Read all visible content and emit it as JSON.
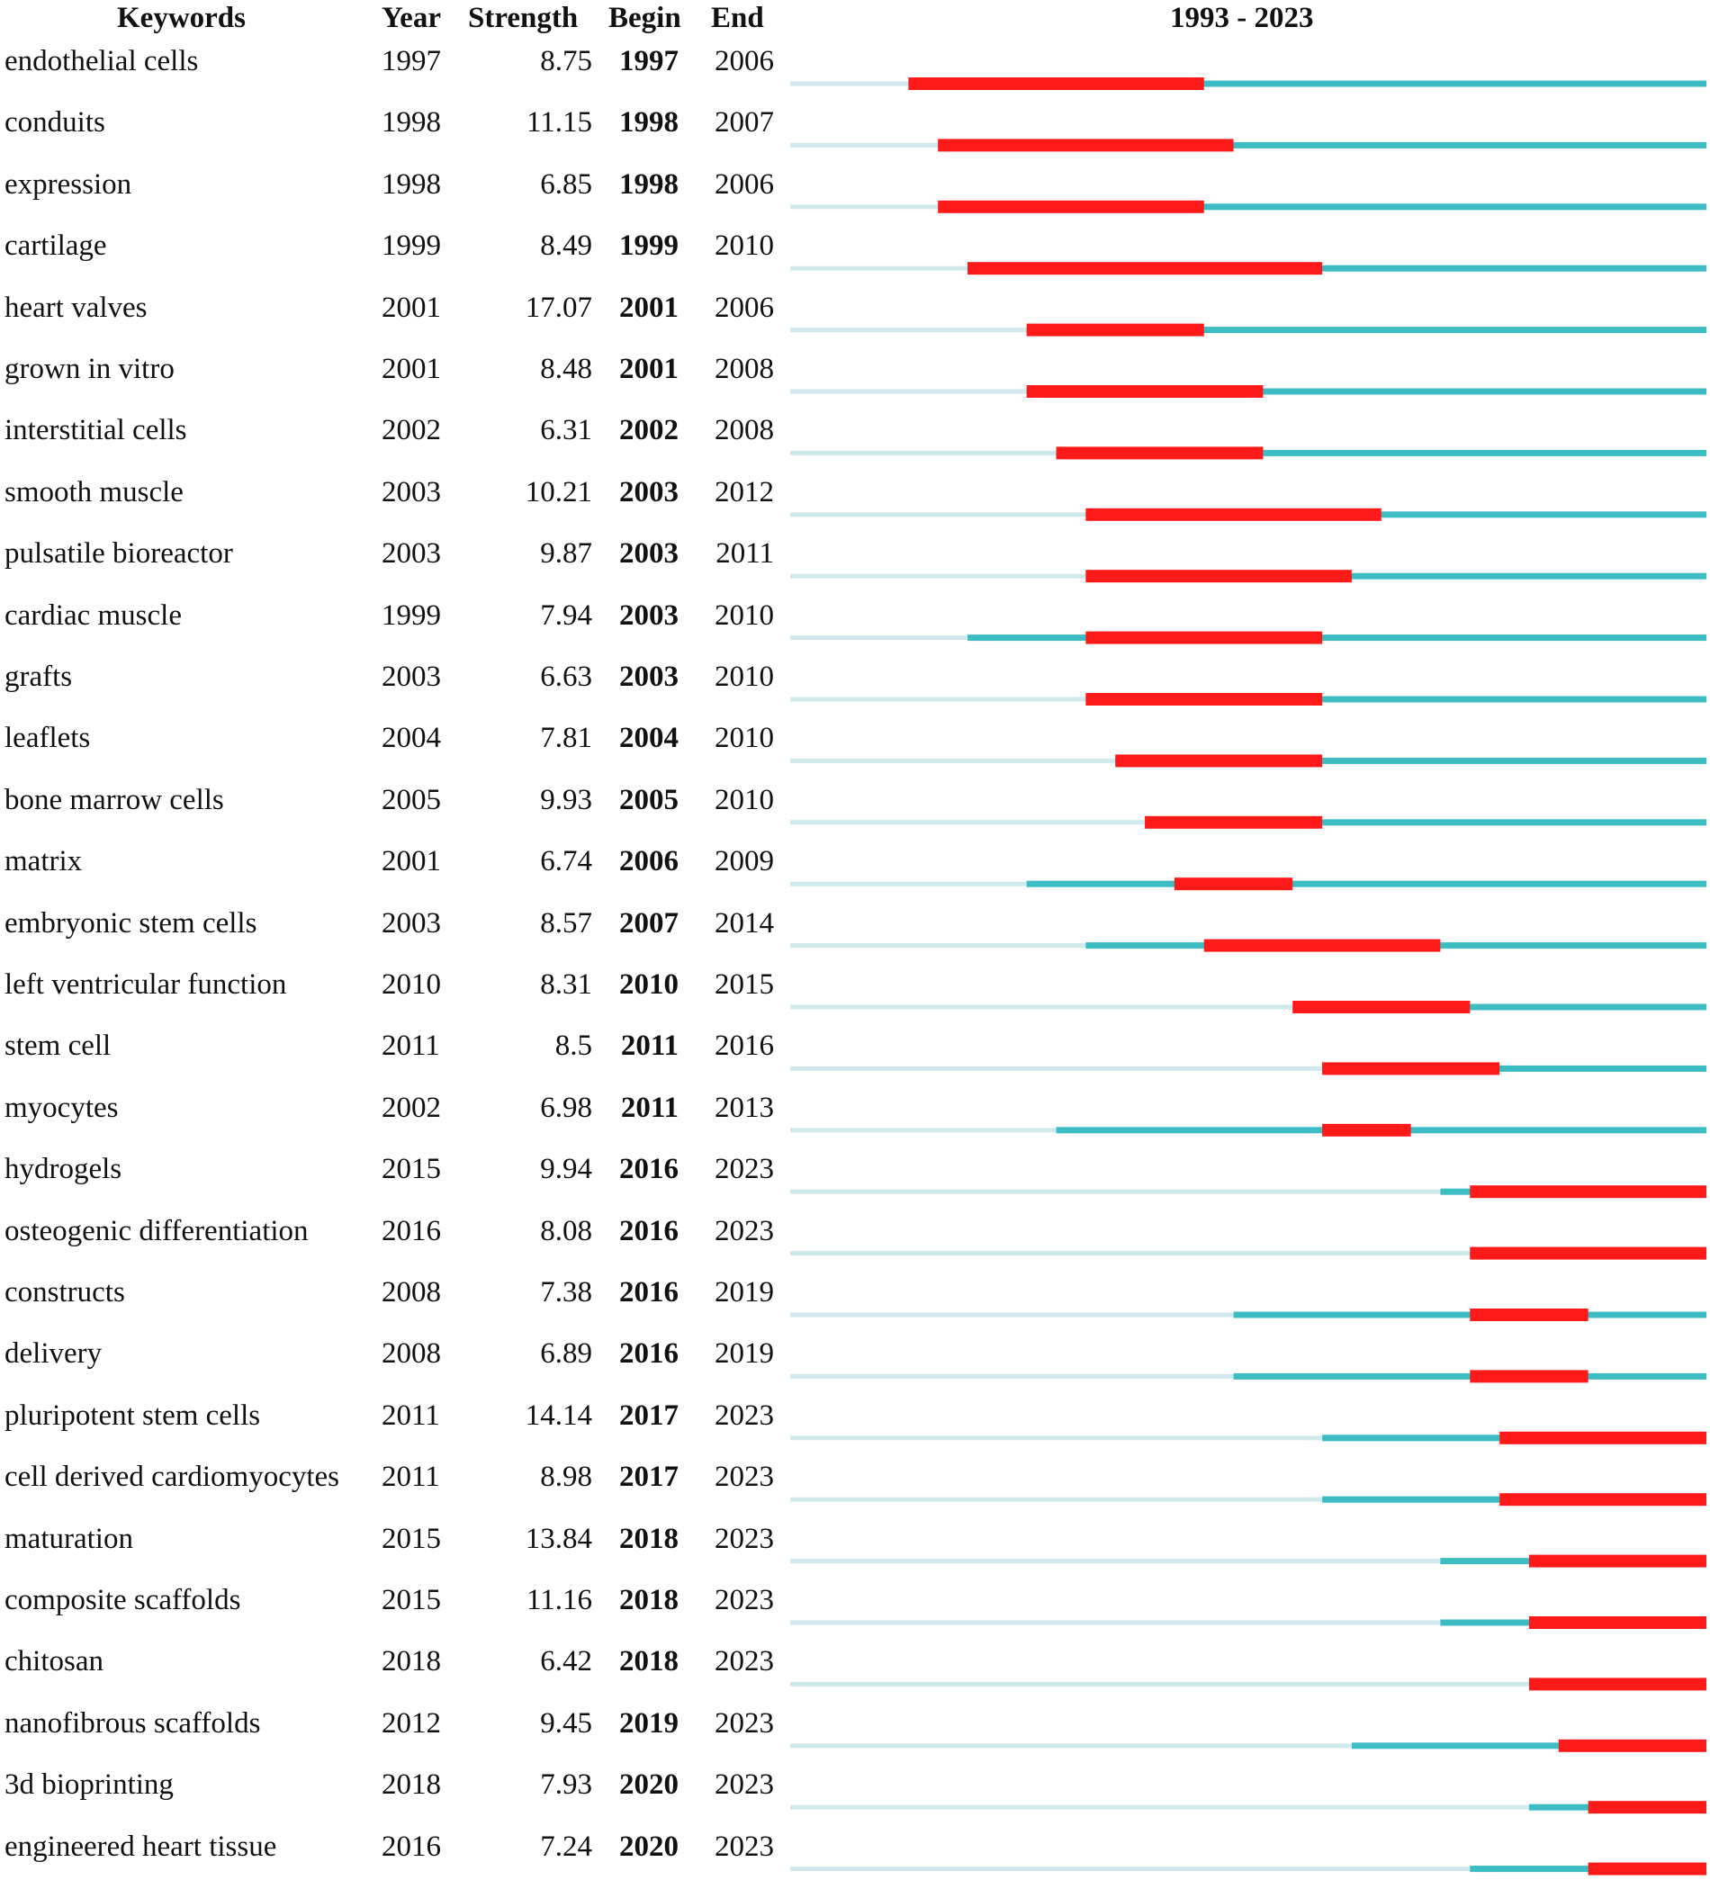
{
  "chart_data": {
    "type": "citation-burst",
    "headers": {
      "keywords": "Keywords",
      "year": "Year",
      "strength": "Strength",
      "begin": "Begin",
      "end": "End",
      "range": "1993 - 2023"
    },
    "range_start": 1993,
    "range_end": 2023,
    "colors": {
      "outside": "#cfe9ec",
      "active": "#3cbcc3",
      "burst": "#ff1a1a"
    },
    "rows": [
      {
        "keyword": "endothelial cells",
        "year": "1997",
        "strength": "8.75",
        "begin": "1997",
        "end": "2006"
      },
      {
        "keyword": "conduits",
        "year": "1998",
        "strength": "11.15",
        "begin": "1998",
        "end": "2007"
      },
      {
        "keyword": "expression",
        "year": "1998",
        "strength": "6.85",
        "begin": "1998",
        "end": "2006"
      },
      {
        "keyword": "cartilage",
        "year": "1999",
        "strength": "8.49",
        "begin": "1999",
        "end": "2010"
      },
      {
        "keyword": "heart valves",
        "year": "2001",
        "strength": "17.07",
        "begin": "2001",
        "end": "2006"
      },
      {
        "keyword": "grown in vitro",
        "year": "2001",
        "strength": "8.48",
        "begin": "2001",
        "end": "2008"
      },
      {
        "keyword": "interstitial cells",
        "year": "2002",
        "strength": "6.31",
        "begin": "2002",
        "end": "2008"
      },
      {
        "keyword": "smooth muscle",
        "year": "2003",
        "strength": "10.21",
        "begin": "2003",
        "end": "2012"
      },
      {
        "keyword": "pulsatile bioreactor",
        "year": "2003",
        "strength": "9.87",
        "begin": "2003",
        "end": "2011"
      },
      {
        "keyword": "cardiac muscle",
        "year": "1999",
        "strength": "7.94",
        "begin": "2003",
        "end": "2010"
      },
      {
        "keyword": "grafts",
        "year": "2003",
        "strength": "6.63",
        "begin": "2003",
        "end": "2010"
      },
      {
        "keyword": "leaflets",
        "year": "2004",
        "strength": "7.81",
        "begin": "2004",
        "end": "2010"
      },
      {
        "keyword": "bone marrow cells",
        "year": "2005",
        "strength": "9.93",
        "begin": "2005",
        "end": "2010"
      },
      {
        "keyword": "matrix",
        "year": "2001",
        "strength": "6.74",
        "begin": "2006",
        "end": "2009"
      },
      {
        "keyword": "embryonic stem cells",
        "year": "2003",
        "strength": "8.57",
        "begin": "2007",
        "end": "2014"
      },
      {
        "keyword": "left ventricular function",
        "year": "2010",
        "strength": "8.31",
        "begin": "2010",
        "end": "2015"
      },
      {
        "keyword": "stem cell",
        "year": "2011",
        "strength": "8.5",
        "begin": "2011",
        "end": "2016"
      },
      {
        "keyword": "myocytes",
        "year": "2002",
        "strength": "6.98",
        "begin": "2011",
        "end": "2013"
      },
      {
        "keyword": "hydrogels",
        "year": "2015",
        "strength": "9.94",
        "begin": "2016",
        "end": "2023"
      },
      {
        "keyword": "osteogenic differentiation",
        "year": "2016",
        "strength": "8.08",
        "begin": "2016",
        "end": "2023"
      },
      {
        "keyword": "constructs",
        "year": "2008",
        "strength": "7.38",
        "begin": "2016",
        "end": "2019"
      },
      {
        "keyword": "delivery",
        "year": "2008",
        "strength": "6.89",
        "begin": "2016",
        "end": "2019"
      },
      {
        "keyword": "pluripotent stem cells",
        "year": "2011",
        "strength": "14.14",
        "begin": "2017",
        "end": "2023"
      },
      {
        "keyword": "cell derived cardiomyocytes",
        "year": "2011",
        "strength": "8.98",
        "begin": "2017",
        "end": "2023"
      },
      {
        "keyword": "maturation",
        "year": "2015",
        "strength": "13.84",
        "begin": "2018",
        "end": "2023"
      },
      {
        "keyword": "composite scaffolds",
        "year": "2015",
        "strength": "11.16",
        "begin": "2018",
        "end": "2023"
      },
      {
        "keyword": "chitosan",
        "year": "2018",
        "strength": "6.42",
        "begin": "2018",
        "end": "2023"
      },
      {
        "keyword": "nanofibrous scaffolds",
        "year": "2012",
        "strength": "9.45",
        "begin": "2019",
        "end": "2023"
      },
      {
        "keyword": "3d bioprinting",
        "year": "2018",
        "strength": "7.93",
        "begin": "2020",
        "end": "2023"
      },
      {
        "keyword": "engineered heart tissue",
        "year": "2016",
        "strength": "7.24",
        "begin": "2020",
        "end": "2023"
      }
    ]
  }
}
